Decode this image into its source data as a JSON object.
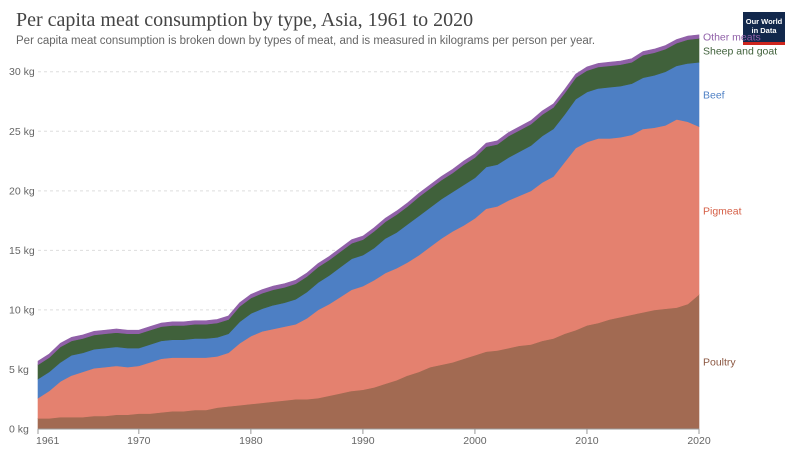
{
  "header": {
    "title": "Per capita meat consumption by type, Asia, 1961 to 2020",
    "subtitle": "Per capita meat consumption is broken down by types of meat, and is measured in kilograms per person per year.",
    "logo_line1": "Our World",
    "logo_line2": "in Data"
  },
  "colors": {
    "poultry": "#a26a52",
    "pigmeat": "#e4816f",
    "beef": "#4d7fc4",
    "sheep": "#40613b",
    "other": "#9060a8",
    "grid": "#dddddd",
    "axis": "#999999"
  },
  "chart_data": {
    "type": "area",
    "stacked": true,
    "x": [
      1961,
      1962,
      1963,
      1964,
      1965,
      1966,
      1967,
      1968,
      1969,
      1970,
      1971,
      1972,
      1973,
      1974,
      1975,
      1976,
      1977,
      1978,
      1979,
      1980,
      1981,
      1982,
      1983,
      1984,
      1985,
      1986,
      1987,
      1988,
      1989,
      1990,
      1991,
      1992,
      1993,
      1994,
      1995,
      1996,
      1997,
      1998,
      1999,
      2000,
      2001,
      2002,
      2003,
      2004,
      2005,
      2006,
      2007,
      2008,
      2009,
      2010,
      2011,
      2012,
      2013,
      2014,
      2015,
      2016,
      2017,
      2018,
      2019,
      2020
    ],
    "xlim": [
      1961,
      2020
    ],
    "xticks": [
      "1961",
      "1970",
      "1980",
      "1990",
      "2000",
      "2010",
      "2020"
    ],
    "ylim": [
      0,
      33
    ],
    "yticks": [
      "0 kg",
      "5 kg",
      "10 kg",
      "15 kg",
      "20 kg",
      "25 kg",
      "30 kg"
    ],
    "series": [
      {
        "name": "Poultry",
        "key": "poultry",
        "values": [
          0.9,
          0.9,
          1,
          1,
          1,
          1.1,
          1.1,
          1.2,
          1.2,
          1.3,
          1.3,
          1.4,
          1.5,
          1.5,
          1.6,
          1.6,
          1.8,
          1.9,
          2,
          2.1,
          2.2,
          2.3,
          2.4,
          2.5,
          2.5,
          2.6,
          2.8,
          3,
          3.2,
          3.3,
          3.5,
          3.8,
          4.1,
          4.5,
          4.8,
          5.2,
          5.4,
          5.6,
          5.9,
          6.2,
          6.5,
          6.6,
          6.8,
          7,
          7.1,
          7.4,
          7.6,
          8,
          8.3,
          8.7,
          8.9,
          9.2,
          9.4,
          9.6,
          9.8,
          10,
          10.1,
          10.2,
          10.5,
          11.3
        ]
      },
      {
        "name": "Pigmeat",
        "key": "pigmeat",
        "values": [
          1.7,
          2.3,
          3,
          3.5,
          3.8,
          4,
          4.1,
          4.1,
          4,
          4,
          4.3,
          4.5,
          4.5,
          4.5,
          4.4,
          4.4,
          4.3,
          4.5,
          5.2,
          5.7,
          6,
          6.1,
          6.2,
          6.3,
          6.8,
          7.4,
          7.7,
          8.1,
          8.5,
          8.7,
          9,
          9.3,
          9.4,
          9.5,
          9.8,
          10.1,
          10.6,
          11,
          11.2,
          11.5,
          12,
          12.1,
          12.4,
          12.6,
          12.9,
          13.3,
          13.6,
          14.4,
          15.3,
          15.4,
          15.5,
          15.2,
          15.1,
          15.1,
          15.4,
          15.3,
          15.4,
          15.8,
          15.3,
          14.1
        ]
      },
      {
        "name": "Beef",
        "key": "beef",
        "values": [
          1.6,
          1.6,
          1.6,
          1.7,
          1.6,
          1.6,
          1.6,
          1.6,
          1.6,
          1.5,
          1.5,
          1.5,
          1.5,
          1.5,
          1.6,
          1.6,
          1.6,
          1.6,
          1.8,
          1.9,
          1.9,
          2,
          2,
          2.1,
          2.2,
          2.3,
          2.4,
          2.5,
          2.6,
          2.6,
          2.7,
          2.9,
          3,
          3.2,
          3.3,
          3.3,
          3.3,
          3.3,
          3.4,
          3.4,
          3.5,
          3.5,
          3.6,
          3.7,
          3.8,
          3.9,
          4,
          4,
          4.1,
          4.2,
          4.2,
          4.3,
          4.3,
          4.3,
          4.3,
          4.4,
          4.5,
          4.5,
          4.9,
          5.4
        ]
      },
      {
        "name": "Sheep and goat",
        "key": "sheep",
        "values": [
          1.2,
          1.2,
          1.3,
          1.2,
          1.2,
          1.2,
          1.2,
          1.2,
          1.2,
          1.2,
          1.2,
          1.2,
          1.2,
          1.2,
          1.2,
          1.2,
          1.2,
          1.2,
          1.3,
          1.3,
          1.3,
          1.3,
          1.3,
          1.3,
          1.3,
          1.3,
          1.3,
          1.3,
          1.3,
          1.3,
          1.4,
          1.4,
          1.5,
          1.5,
          1.6,
          1.6,
          1.6,
          1.6,
          1.7,
          1.7,
          1.7,
          1.7,
          1.8,
          1.8,
          1.8,
          1.8,
          1.8,
          1.8,
          1.8,
          1.8,
          1.8,
          1.8,
          1.8,
          1.8,
          1.9,
          1.9,
          1.9,
          1.9,
          2,
          2
        ]
      },
      {
        "name": "Other meats",
        "key": "other",
        "values": [
          0.3,
          0.3,
          0.3,
          0.3,
          0.3,
          0.3,
          0.3,
          0.3,
          0.3,
          0.3,
          0.3,
          0.3,
          0.3,
          0.3,
          0.3,
          0.3,
          0.3,
          0.3,
          0.3,
          0.3,
          0.3,
          0.3,
          0.3,
          0.3,
          0.3,
          0.3,
          0.3,
          0.3,
          0.3,
          0.3,
          0.3,
          0.3,
          0.3,
          0.3,
          0.3,
          0.3,
          0.3,
          0.3,
          0.3,
          0.3,
          0.3,
          0.3,
          0.3,
          0.3,
          0.3,
          0.3,
          0.3,
          0.3,
          0.3,
          0.3,
          0.3,
          0.3,
          0.3,
          0.3,
          0.3,
          0.3,
          0.3,
          0.3,
          0.3,
          0.3
        ]
      }
    ],
    "legend": "right-inline",
    "grid": true
  }
}
